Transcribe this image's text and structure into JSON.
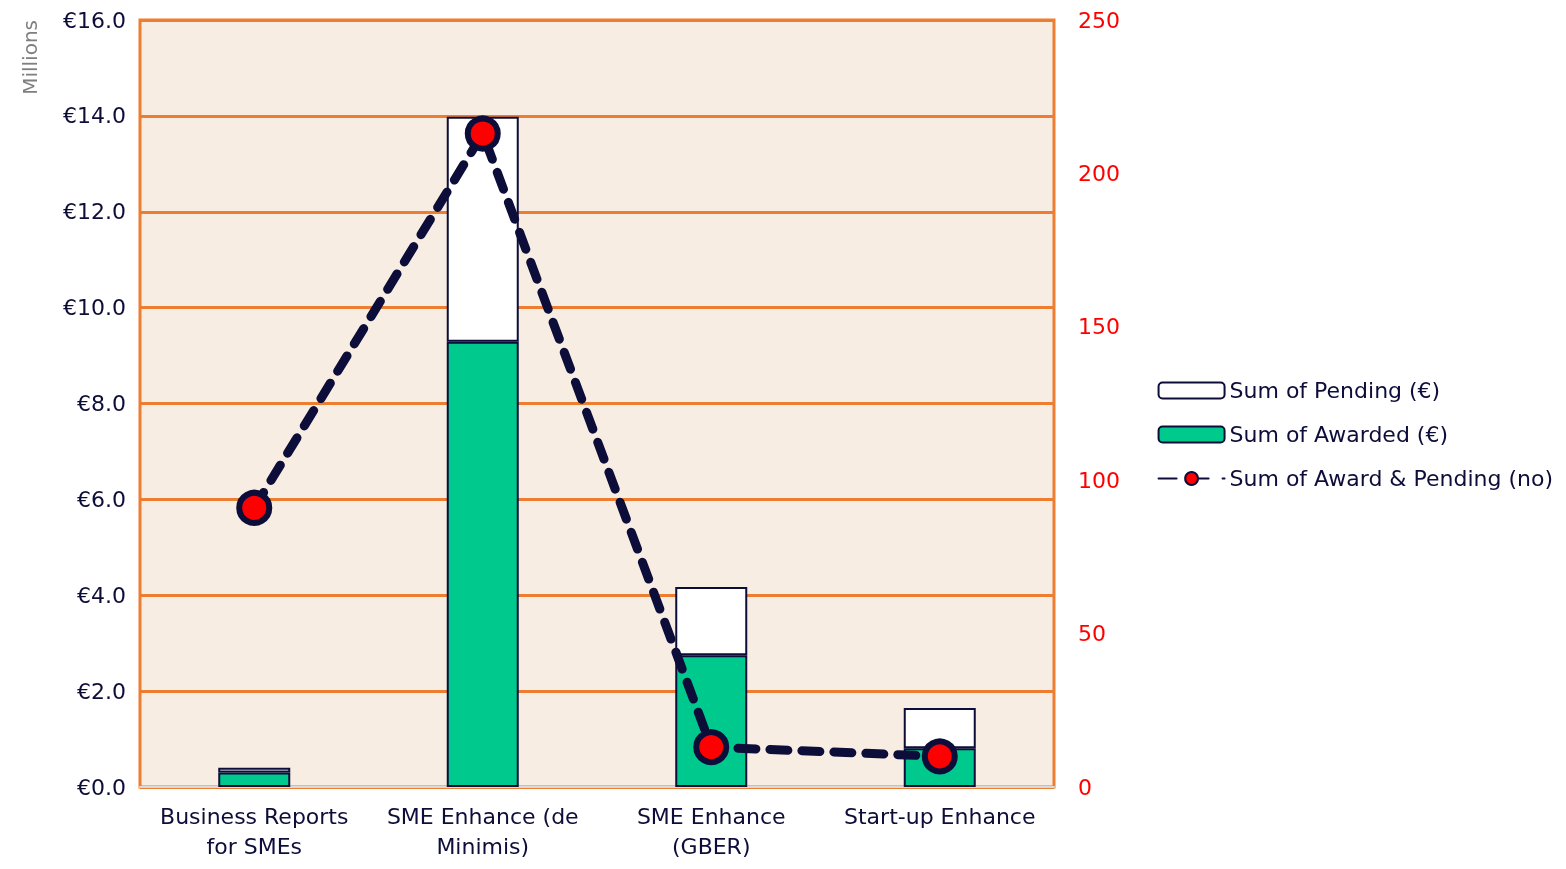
{
  "chart_data": {
    "type": "bar",
    "stacked": true,
    "ylabel": "Millions",
    "categories": [
      "Business Reports\nfor SMEs",
      "SME Enhance (de\nMinimis)",
      "SME Enhance\n(GBER)",
      "Start-up Enhance"
    ],
    "series": [
      {
        "name": "Sum of Awarded (€)",
        "color": "#00c98d",
        "values": [
          0.3,
          9.29,
          2.75,
          0.81
        ]
      },
      {
        "name": "Sum of Pending (€)",
        "color": "#ffffff",
        "values": [
          0.1,
          4.69,
          1.42,
          0.84
        ]
      },
      {
        "name": "Sum of Award & Pending (no)",
        "type": "line",
        "axis": "y2",
        "color": "#0d0d3a",
        "line_style": "dashed",
        "marker": "circle",
        "values": [
          91,
          213,
          13,
          10
        ]
      }
    ],
    "ylim": [
      0,
      16
    ],
    "yticks": [
      {
        "value": 0,
        "label": "€0.0"
      },
      {
        "value": 2,
        "label": "€2.0"
      },
      {
        "value": 4,
        "label": "€4.0"
      },
      {
        "value": 6,
        "label": "€6.0"
      },
      {
        "value": 8,
        "label": "€8.0"
      },
      {
        "value": 10,
        "label": "€10.0"
      },
      {
        "value": 12,
        "label": "€12.0"
      },
      {
        "value": 14,
        "label": "€14.0"
      },
      {
        "value": 16,
        "label": "€16.0"
      }
    ],
    "y2lim": [
      0,
      250
    ],
    "y2ticks": [
      0,
      50,
      100,
      150,
      200,
      250
    ],
    "grid": "y",
    "legend": "right"
  }
}
